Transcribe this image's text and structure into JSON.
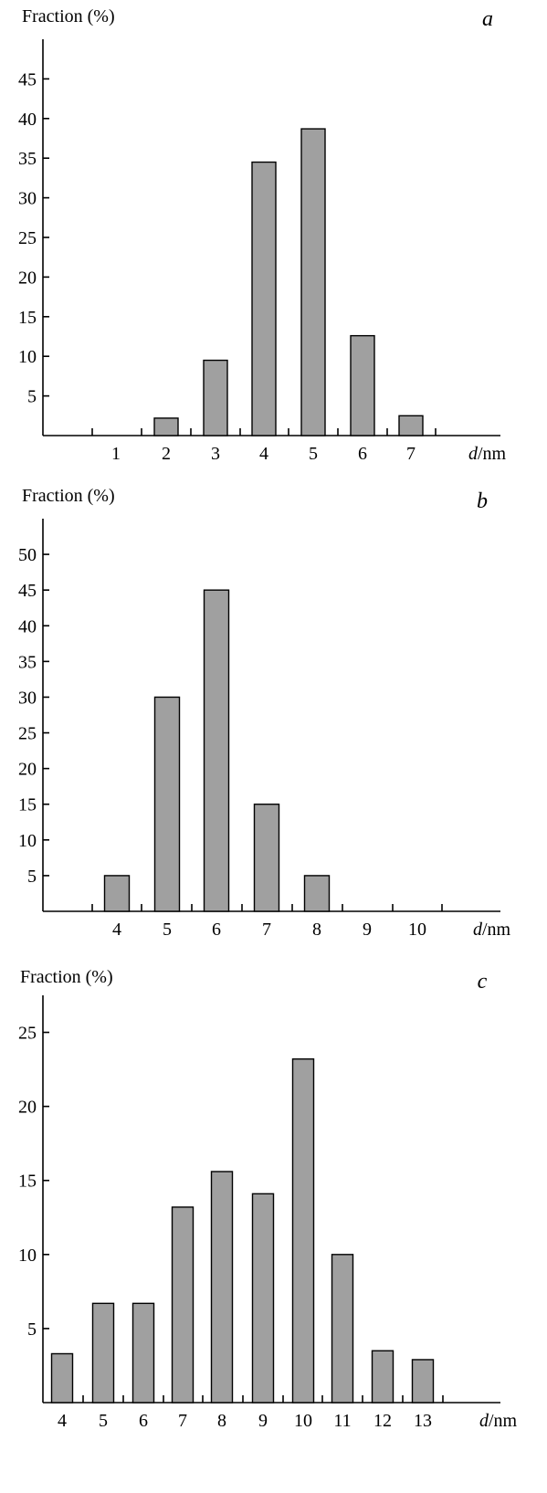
{
  "colors": {
    "bar_fill": "#a0a0a0",
    "bar_stroke": "#000000",
    "background": "#ffffff"
  },
  "chart_data": [
    {
      "type": "bar",
      "panel": "a",
      "ylabel": "Fraction (%)",
      "xlabel_italic": "d",
      "xlabel_unit": "/nm",
      "ylim": [
        0,
        50
      ],
      "yticks": [
        5,
        10,
        15,
        20,
        25,
        30,
        35,
        40,
        45
      ],
      "categories": [
        "1",
        "2",
        "3",
        "4",
        "5",
        "6",
        "7"
      ],
      "values": [
        0,
        2.2,
        9.5,
        34.5,
        38.7,
        12.6,
        2.5
      ],
      "grid": false,
      "legend": "none"
    },
    {
      "type": "bar",
      "panel": "b",
      "ylabel": "Fraction (%)",
      "xlabel_italic": "d",
      "xlabel_unit": "/nm",
      "ylim": [
        0,
        55
      ],
      "yticks": [
        5,
        10,
        15,
        20,
        25,
        30,
        35,
        40,
        45,
        50
      ],
      "categories": [
        "4",
        "5",
        "6",
        "7",
        "8",
        "9",
        "10"
      ],
      "values": [
        5,
        30,
        45,
        15,
        5,
        0,
        0
      ],
      "grid": false,
      "legend": "none"
    },
    {
      "type": "bar",
      "panel": "c",
      "ylabel": "Fraction (%)",
      "xlabel_italic": "d",
      "xlabel_unit": "/nm",
      "ylim": [
        0,
        27.5
      ],
      "yticks": [
        5,
        10,
        15,
        20,
        25
      ],
      "categories": [
        "4",
        "5",
        "6",
        "7",
        "8",
        "9",
        "10",
        "11",
        "12",
        "13"
      ],
      "values": [
        3.3,
        6.7,
        6.7,
        13.2,
        15.6,
        14.1,
        23.2,
        10.0,
        3.5,
        2.9
      ],
      "grid": false,
      "legend": "none"
    }
  ]
}
